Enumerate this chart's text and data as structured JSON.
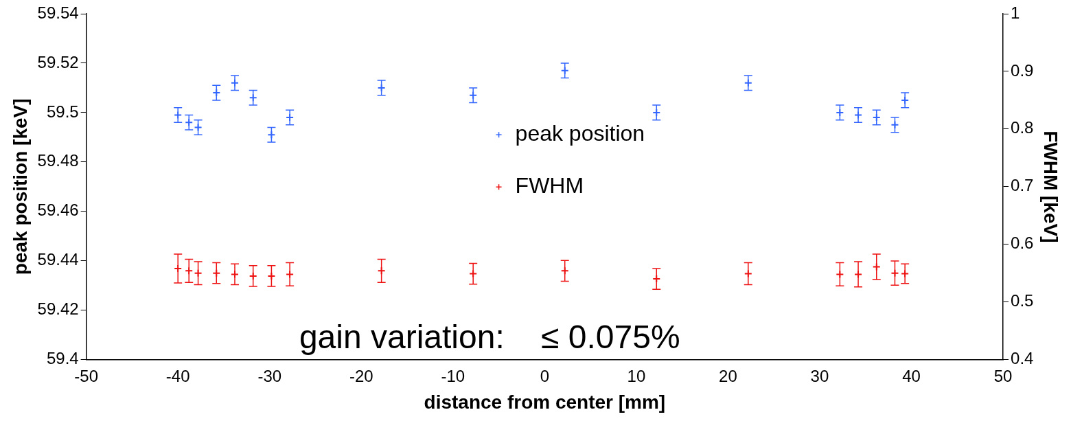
{
  "chart_data": {
    "type": "scatter",
    "xlabel": "distance from center [mm]",
    "ylabel": "peak position [keV]",
    "y2label": "FWHM [keV]",
    "x": [
      -40,
      -38.8,
      -37.8,
      -35.8,
      -33.8,
      -31.8,
      -29.8,
      -27.8,
      -17.8,
      -7.8,
      2.2,
      12.2,
      22.2,
      32.2,
      34.2,
      36.2,
      38.2,
      39.3
    ],
    "series": [
      {
        "name": "peak position",
        "color": "#3366ff",
        "values": [
          59.499,
          59.496,
          59.494,
          59.508,
          59.512,
          59.506,
          59.491,
          59.498,
          59.51,
          59.507,
          59.517,
          59.5,
          59.512,
          59.5,
          59.499,
          59.498,
          59.495,
          59.505
        ],
        "errors": [
          0.003,
          0.003,
          0.003,
          0.003,
          0.003,
          0.003,
          0.003,
          0.003,
          0.003,
          0.003,
          0.003,
          0.003,
          0.003,
          0.003,
          0.003,
          0.003,
          0.003,
          0.003
        ]
      },
      {
        "name": "FWHM",
        "color": "#ee1111",
        "axis": "y2",
        "values": [
          0.558,
          0.554,
          0.55,
          0.55,
          0.548,
          0.545,
          0.545,
          0.548,
          0.554,
          0.549,
          0.554,
          0.54,
          0.549,
          0.548,
          0.548,
          0.561,
          0.55,
          0.549
        ],
        "errors": [
          0.025,
          0.02,
          0.02,
          0.018,
          0.018,
          0.018,
          0.018,
          0.02,
          0.02,
          0.018,
          0.018,
          0.018,
          0.019,
          0.02,
          0.022,
          0.022,
          0.021,
          0.017
        ]
      }
    ],
    "xlim": [
      -50,
      50
    ],
    "xticks": [
      -50,
      -40,
      -30,
      -20,
      -10,
      0,
      10,
      20,
      30,
      40,
      50
    ],
    "ylim": [
      59.4,
      59.54
    ],
    "yticks": [
      59.4,
      59.42,
      59.44,
      59.46,
      59.48,
      59.5,
      59.52,
      59.54
    ],
    "y2lim": [
      0.4,
      1
    ],
    "y2ticks": [
      0.4,
      0.5,
      0.6,
      0.7,
      0.8,
      0.9,
      1
    ],
    "annotations": [
      "gain variation:    ≤ 0.075%"
    ],
    "legend": "center",
    "marker": "cross",
    "grid": false
  }
}
